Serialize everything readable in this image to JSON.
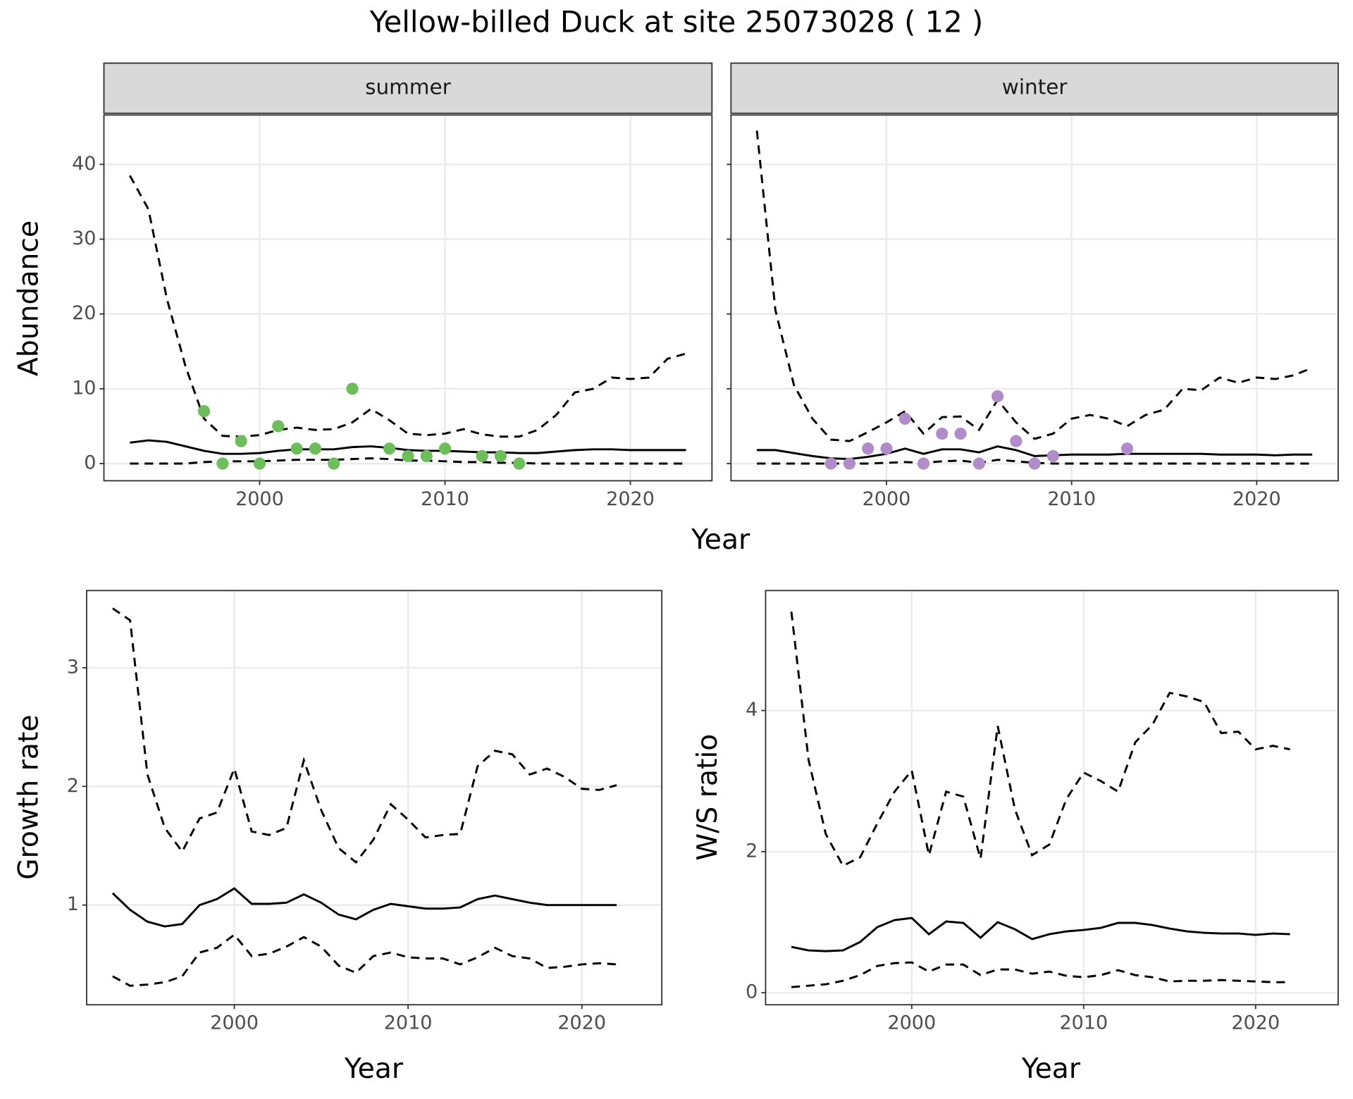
{
  "title": "Yellow-billed Duck at site 25073028 ( 12 )",
  "chart_data": [
    {
      "type": "line",
      "facet": "summer",
      "ylabel": "Abundance",
      "xlabel": "Year",
      "grid": true,
      "y_tick_labels": true,
      "xlim": [
        1991.6,
        2024.4
      ],
      "ylim": [
        -2.3,
        46.6
      ],
      "xticks": [
        2000,
        2010,
        2020
      ],
      "yticks": [
        0,
        10,
        20,
        30,
        40
      ],
      "x": [
        1993,
        1994,
        1995,
        1996,
        1997,
        1998,
        1999,
        2000,
        2001,
        2002,
        2003,
        2004,
        2005,
        2006,
        2007,
        2008,
        2009,
        2010,
        2011,
        2012,
        2013,
        2014,
        2015,
        2016,
        2017,
        2018,
        2019,
        2020,
        2021,
        2022,
        2023
      ],
      "series": [
        {
          "style": "solid",
          "color": "#000000",
          "values": [
            2.8,
            3.1,
            2.9,
            2.3,
            1.7,
            1.3,
            1.3,
            1.4,
            1.7,
            1.9,
            1.9,
            1.9,
            2.2,
            2.3,
            2.1,
            1.8,
            1.7,
            1.7,
            1.6,
            1.5,
            1.5,
            1.4,
            1.4,
            1.6,
            1.8,
            1.9,
            1.9,
            1.8,
            1.8,
            1.8,
            1.8
          ]
        },
        {
          "style": "dashed",
          "color": "#000000",
          "values": [
            0,
            0,
            0,
            0,
            0.2,
            0.3,
            0.3,
            0.3,
            0.4,
            0.5,
            0.5,
            0.5,
            0.6,
            0.7,
            0.6,
            0.4,
            0.4,
            0.3,
            0.2,
            0.2,
            0.1,
            0.1,
            0,
            0,
            0,
            0,
            0,
            0,
            0,
            0,
            0
          ]
        },
        {
          "style": "dashed",
          "color": "#000000",
          "values": [
            38.5,
            34,
            22,
            13,
            6,
            3.7,
            3.6,
            3.8,
            4.5,
            4.8,
            4.5,
            4.6,
            5.5,
            7.3,
            5.8,
            4,
            3.8,
            4,
            4.6,
            3.9,
            3.6,
            3.6,
            4.5,
            6.5,
            9.5,
            10,
            11.5,
            11.3,
            11.5,
            14,
            14.7
          ]
        }
      ],
      "points": {
        "color": "#6dbd5b",
        "x": [
          1997,
          1998,
          1999,
          2000,
          2001,
          2002,
          2003,
          2004,
          2005,
          2007,
          2008,
          2009,
          2010,
          2012,
          2013,
          2014
        ],
        "values": [
          7,
          0,
          3,
          0,
          5,
          2,
          2,
          0,
          10,
          2,
          1,
          1,
          2,
          1,
          1,
          0
        ]
      }
    },
    {
      "type": "line",
      "facet": "winter",
      "grid": true,
      "y_tick_labels": false,
      "xlim": [
        1991.6,
        2024.4
      ],
      "ylim": [
        -2.3,
        46.6
      ],
      "xticks": [
        2000,
        2010,
        2020
      ],
      "yticks": [
        0,
        10,
        20,
        30,
        40
      ],
      "x": [
        1993,
        1994,
        1995,
        1996,
        1997,
        1998,
        1999,
        2000,
        2001,
        2002,
        2003,
        2004,
        2005,
        2006,
        2007,
        2008,
        2009,
        2010,
        2011,
        2012,
        2013,
        2014,
        2015,
        2016,
        2017,
        2018,
        2019,
        2020,
        2021,
        2022,
        2023
      ],
      "series": [
        {
          "style": "solid",
          "color": "#000000",
          "values": [
            1.8,
            1.8,
            1.4,
            1,
            0.7,
            0.6,
            0.9,
            1.3,
            2,
            1.3,
            1.9,
            1.9,
            1.5,
            2.3,
            1.8,
            1,
            1.1,
            1.2,
            1.2,
            1.2,
            1.3,
            1.3,
            1.3,
            1.3,
            1.3,
            1.2,
            1.2,
            1.2,
            1.1,
            1.2,
            1.2
          ]
        },
        {
          "style": "dashed",
          "color": "#000000",
          "values": [
            0,
            0,
            0,
            0,
            0,
            0,
            0,
            0.1,
            0.2,
            0.1,
            0.3,
            0.4,
            0.1,
            0.5,
            0.3,
            0.1,
            0,
            0,
            0,
            0,
            0,
            0,
            0,
            0,
            0,
            0,
            0,
            0,
            0,
            0,
            0
          ]
        },
        {
          "style": "dashed",
          "color": "#000000",
          "values": [
            44.5,
            20.5,
            10.5,
            6,
            3.2,
            3,
            4.2,
            5.5,
            7,
            4,
            6.2,
            6.3,
            4.5,
            8.5,
            5.5,
            3.3,
            4,
            6,
            6.5,
            6,
            5,
            6.5,
            7.2,
            10,
            9.8,
            11.5,
            10.8,
            11.5,
            11.3,
            11.8,
            12.8
          ]
        }
      ],
      "points": {
        "color": "#b08cc8",
        "x": [
          1997,
          1998,
          1999,
          2000,
          2001,
          2002,
          2003,
          2004,
          2005,
          2006,
          2007,
          2008,
          2009,
          2013
        ],
        "values": [
          0,
          0,
          2,
          2,
          6,
          0,
          4,
          4,
          0,
          9,
          3,
          0,
          1,
          2
        ]
      }
    },
    {
      "type": "line",
      "ylabel": "Growth rate",
      "xlabel": "Year",
      "grid": true,
      "y_tick_labels": true,
      "xlim": [
        1991.5,
        2024.6
      ],
      "ylim": [
        0.16,
        3.65
      ],
      "xticks": [
        2000,
        2010,
        2020
      ],
      "yticks": [
        1,
        2,
        3
      ],
      "x": [
        1993,
        1994,
        1995,
        1996,
        1997,
        1998,
        1999,
        2000,
        2001,
        2002,
        2003,
        2004,
        2005,
        2006,
        2007,
        2008,
        2009,
        2010,
        2011,
        2012,
        2013,
        2014,
        2015,
        2016,
        2017,
        2018,
        2019,
        2020,
        2021,
        2022
      ],
      "series": [
        {
          "style": "solid",
          "color": "#000000",
          "values": [
            1.1,
            0.96,
            0.86,
            0.82,
            0.84,
            1,
            1.05,
            1.14,
            1.01,
            1.01,
            1.02,
            1.09,
            1.02,
            0.92,
            0.88,
            0.96,
            1.01,
            0.99,
            0.97,
            0.97,
            0.98,
            1.05,
            1.08,
            1.05,
            1.02,
            1,
            1,
            1,
            1,
            1
          ]
        },
        {
          "style": "dashed",
          "color": "#000000",
          "values": [
            0.4,
            0.32,
            0.33,
            0.35,
            0.4,
            0.6,
            0.64,
            0.75,
            0.57,
            0.59,
            0.65,
            0.73,
            0.65,
            0.49,
            0.43,
            0.57,
            0.6,
            0.56,
            0.55,
            0.55,
            0.5,
            0.56,
            0.64,
            0.57,
            0.55,
            0.47,
            0.48,
            0.5,
            0.51,
            0.5
          ]
        },
        {
          "style": "dashed",
          "color": "#000000",
          "values": [
            3.5,
            3.4,
            2.1,
            1.65,
            1.45,
            1.73,
            1.78,
            2.15,
            1.62,
            1.59,
            1.65,
            2.22,
            1.8,
            1.48,
            1.36,
            1.55,
            1.85,
            1.72,
            1.57,
            1.59,
            1.6,
            2.17,
            2.3,
            2.27,
            2.1,
            2.15,
            2.08,
            1.98,
            1.97,
            2.01
          ]
        }
      ]
    },
    {
      "type": "line",
      "ylabel": "W/S ratio",
      "xlabel": "Year",
      "grid": true,
      "y_tick_labels": true,
      "xlim": [
        1991.5,
        2024.8
      ],
      "ylim": [
        -0.17,
        5.7
      ],
      "xticks": [
        2000,
        2010,
        2020
      ],
      "yticks": [
        0,
        2,
        4
      ],
      "x": [
        1993,
        1994,
        1995,
        1996,
        1997,
        1998,
        1999,
        2000,
        2001,
        2002,
        2003,
        2004,
        2005,
        2006,
        2007,
        2008,
        2009,
        2010,
        2011,
        2012,
        2013,
        2014,
        2015,
        2016,
        2017,
        2018,
        2019,
        2020,
        2021,
        2022
      ],
      "series": [
        {
          "style": "solid",
          "color": "#000000",
          "values": [
            0.65,
            0.6,
            0.59,
            0.6,
            0.72,
            0.93,
            1.03,
            1.06,
            0.83,
            1.01,
            0.99,
            0.78,
            1,
            0.9,
            0.76,
            0.83,
            0.87,
            0.89,
            0.92,
            0.99,
            0.99,
            0.96,
            0.91,
            0.87,
            0.85,
            0.84,
            0.84,
            0.82,
            0.84,
            0.83
          ]
        },
        {
          "style": "dashed",
          "color": "#000000",
          "values": [
            0.08,
            0.1,
            0.12,
            0.17,
            0.25,
            0.38,
            0.42,
            0.43,
            0.3,
            0.4,
            0.4,
            0.25,
            0.33,
            0.33,
            0.27,
            0.3,
            0.24,
            0.22,
            0.25,
            0.32,
            0.25,
            0.22,
            0.16,
            0.17,
            0.17,
            0.18,
            0.17,
            0.16,
            0.15,
            0.15
          ]
        },
        {
          "style": "dashed",
          "color": "#000000",
          "values": [
            5.4,
            3.3,
            2.25,
            1.8,
            1.92,
            2.4,
            2.85,
            3.15,
            1.95,
            2.85,
            2.78,
            1.9,
            3.78,
            2.6,
            1.95,
            2.1,
            2.75,
            3.12,
            3,
            2.85,
            3.55,
            3.8,
            4.25,
            4.2,
            4.12,
            3.68,
            3.7,
            3.45,
            3.5,
            3.45
          ]
        }
      ]
    }
  ]
}
